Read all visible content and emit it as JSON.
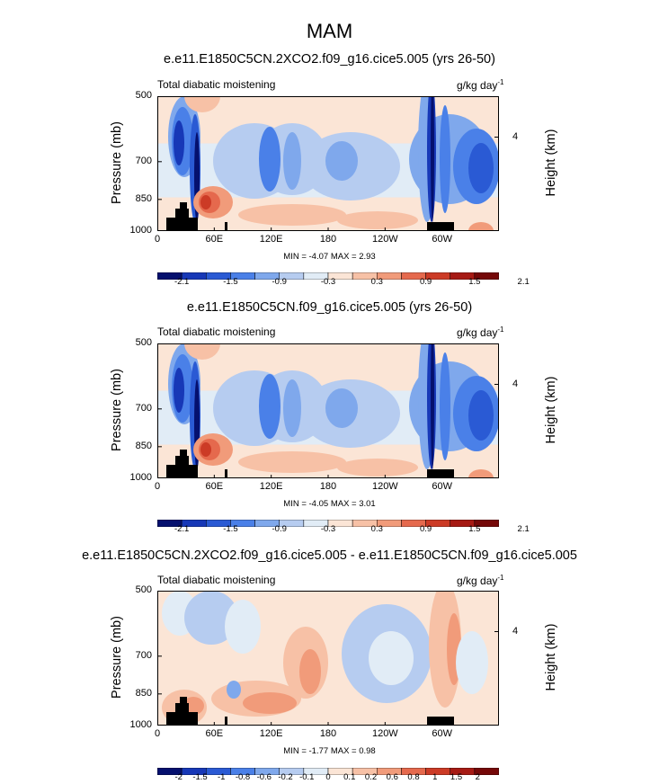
{
  "title": "MAM",
  "colors": {
    "blues": [
      "#05106e",
      "#1738b7",
      "#2a5ad4",
      "#4a80e8",
      "#7fa8ec",
      "#b6ccf0",
      "#e1ecf6"
    ],
    "reds": [
      "#fbe5d6",
      "#f7c1a6",
      "#f19b7a",
      "#e5694d",
      "#cc3b26",
      "#a61a14",
      "#750808"
    ],
    "land": "#000000",
    "background": "#ffffff"
  },
  "chart_data": [
    {
      "type": "heatmap",
      "title": "e.e11.E1850C5CN.2XCO2.f09_g16.cice5.005 (yrs 26-50)",
      "left_title": "Total diabatic moistening",
      "units": "g/kg day",
      "units_exp": "-1",
      "ylabel": "Pressure (mb)",
      "ylabel_right": "Height (km)",
      "xticks": [
        "0",
        "60E",
        "120E",
        "180",
        "120W",
        "60W"
      ],
      "yticks": [
        "500",
        "700",
        "850",
        "1000"
      ],
      "right_ticks": [
        "4"
      ],
      "xlim": [
        0,
        360
      ],
      "ylim": [
        1000,
        500
      ],
      "stats": "MIN = -4.07  MAX =  2.93",
      "colorbar_labels": [
        "-2.1",
        "-1.5",
        "-0.9",
        "-0.3",
        "0.3",
        "0.9",
        "1.5",
        "2.1"
      ]
    },
    {
      "type": "heatmap",
      "title": "e.e11.E1850C5CN.f09_g16.cice5.005 (yrs 26-50)",
      "left_title": "Total diabatic moistening",
      "units": "g/kg day",
      "units_exp": "-1",
      "ylabel": "Pressure (mb)",
      "ylabel_right": "Height (km)",
      "xticks": [
        "0",
        "60E",
        "120E",
        "180",
        "120W",
        "60W"
      ],
      "yticks": [
        "500",
        "700",
        "850",
        "1000"
      ],
      "right_ticks": [
        "4"
      ],
      "xlim": [
        0,
        360
      ],
      "ylim": [
        1000,
        500
      ],
      "stats": "MIN = -4.05  MAX =  3.01",
      "colorbar_labels": [
        "-2.1",
        "-1.5",
        "-0.9",
        "-0.3",
        "0.3",
        "0.9",
        "1.5",
        "2.1"
      ]
    },
    {
      "type": "heatmap",
      "title": "e.e11.E1850C5CN.2XCO2.f09_g16.cice5.005 - e.e11.E1850C5CN.f09_g16.cice5.005",
      "left_title": "Total diabatic moistening",
      "units": "g/kg day",
      "units_exp": "-1",
      "ylabel": "Pressure (mb)",
      "ylabel_right": "Height (km)",
      "xticks": [
        "0",
        "60E",
        "120E",
        "180",
        "120W",
        "60W"
      ],
      "yticks": [
        "500",
        "700",
        "850",
        "1000"
      ],
      "right_ticks": [
        "4"
      ],
      "xlim": [
        0,
        360
      ],
      "ylim": [
        1000,
        500
      ],
      "stats": "MIN = -1.77  MAX =  0.98",
      "colorbar_labels": [
        "-2",
        "-1.5",
        "-1",
        "-0.8",
        "-0.6",
        "-0.2",
        "-0.1",
        "0",
        "0.1",
        "0.2",
        "0.6",
        "0.8",
        "1",
        "1.5",
        "2"
      ]
    }
  ]
}
